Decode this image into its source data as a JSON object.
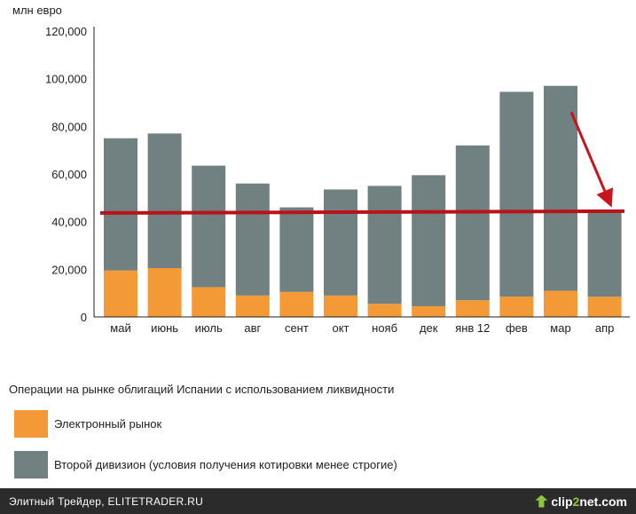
{
  "chart_data": {
    "type": "bar",
    "stacked": true,
    "y_unit_label": "млн евро",
    "categories": [
      "май",
      "июнь",
      "июль",
      "авг",
      "сент",
      "окт",
      "нояб",
      "дек",
      "янв 12",
      "фев",
      "мар",
      "апр"
    ],
    "y_ticks": [
      "0",
      "20,000",
      "40,000",
      "60,000",
      "80,000",
      "100,000",
      "120,000"
    ],
    "ylim": [
      0,
      120000
    ],
    "series": [
      {
        "name": "Электронный рынок",
        "color": "#f39a37",
        "values": [
          19500,
          20500,
          12500,
          9000,
          10500,
          9000,
          5500,
          4500,
          7000,
          8500,
          11000,
          8500
        ]
      },
      {
        "name": "Второй дивизион (условия получения котировки менее строгие)",
        "color": "#718080",
        "values": [
          55500,
          56500,
          51000,
          47000,
          35500,
          44500,
          49500,
          55000,
          65000,
          86000,
          86000,
          36000
        ]
      }
    ],
    "reference_line": {
      "value": 44000,
      "color": "#b8121a"
    },
    "annotation_arrow": {
      "from": [
        "мар",
        86000
      ],
      "to": [
        "апр",
        46000
      ],
      "color": "#c8141c"
    }
  },
  "legend": {
    "title": "Операции на рынке облигаций Испании с использованием ликвидности",
    "items": [
      {
        "label": "Электронный рынок",
        "color": "#f39a37"
      },
      {
        "label": "Второй дивизион (условия получения котировки менее строгие)",
        "color": "#718080"
      }
    ]
  },
  "footer": {
    "text": "Элитный Трейдер, ELITETRADER.RU",
    "logo_clip": "clip",
    "logo_two": "2",
    "logo_net": "net.com"
  }
}
